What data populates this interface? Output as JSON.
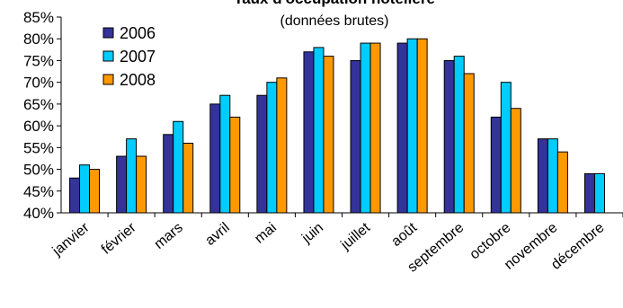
{
  "chart_data": {
    "type": "bar",
    "title": "Taux d'occupation hôtelière",
    "subtitle": "(données brutes)",
    "xlabel": "",
    "ylabel": "",
    "categories": [
      "janvier",
      "février",
      "mars",
      "avril",
      "mai",
      "juin",
      "juillet",
      "août",
      "septembre",
      "octobre",
      "novembre",
      "décembre"
    ],
    "series": [
      {
        "name": "2006",
        "color": "#333399",
        "values": [
          48,
          53,
          58,
          65,
          67,
          77,
          75,
          79,
          75,
          62,
          57,
          49
        ]
      },
      {
        "name": "2007",
        "color": "#00CCFF",
        "values": [
          51,
          57,
          61,
          67,
          70,
          78,
          79,
          80,
          76,
          70,
          57,
          49
        ]
      },
      {
        "name": "2008",
        "color": "#FF9900",
        "values": [
          50,
          53,
          56,
          62,
          71,
          76,
          79,
          80,
          72,
          64,
          54,
          null
        ]
      }
    ],
    "ylim": [
      40,
      85
    ],
    "yticks": [
      40,
      45,
      50,
      55,
      60,
      65,
      70,
      75,
      80,
      85
    ],
    "ytick_labels": [
      "40%",
      "45%",
      "50%",
      "55%",
      "60%",
      "65%",
      "70%",
      "75%",
      "80%",
      "85%"
    ],
    "legend_position": "top-left",
    "grid": false
  }
}
